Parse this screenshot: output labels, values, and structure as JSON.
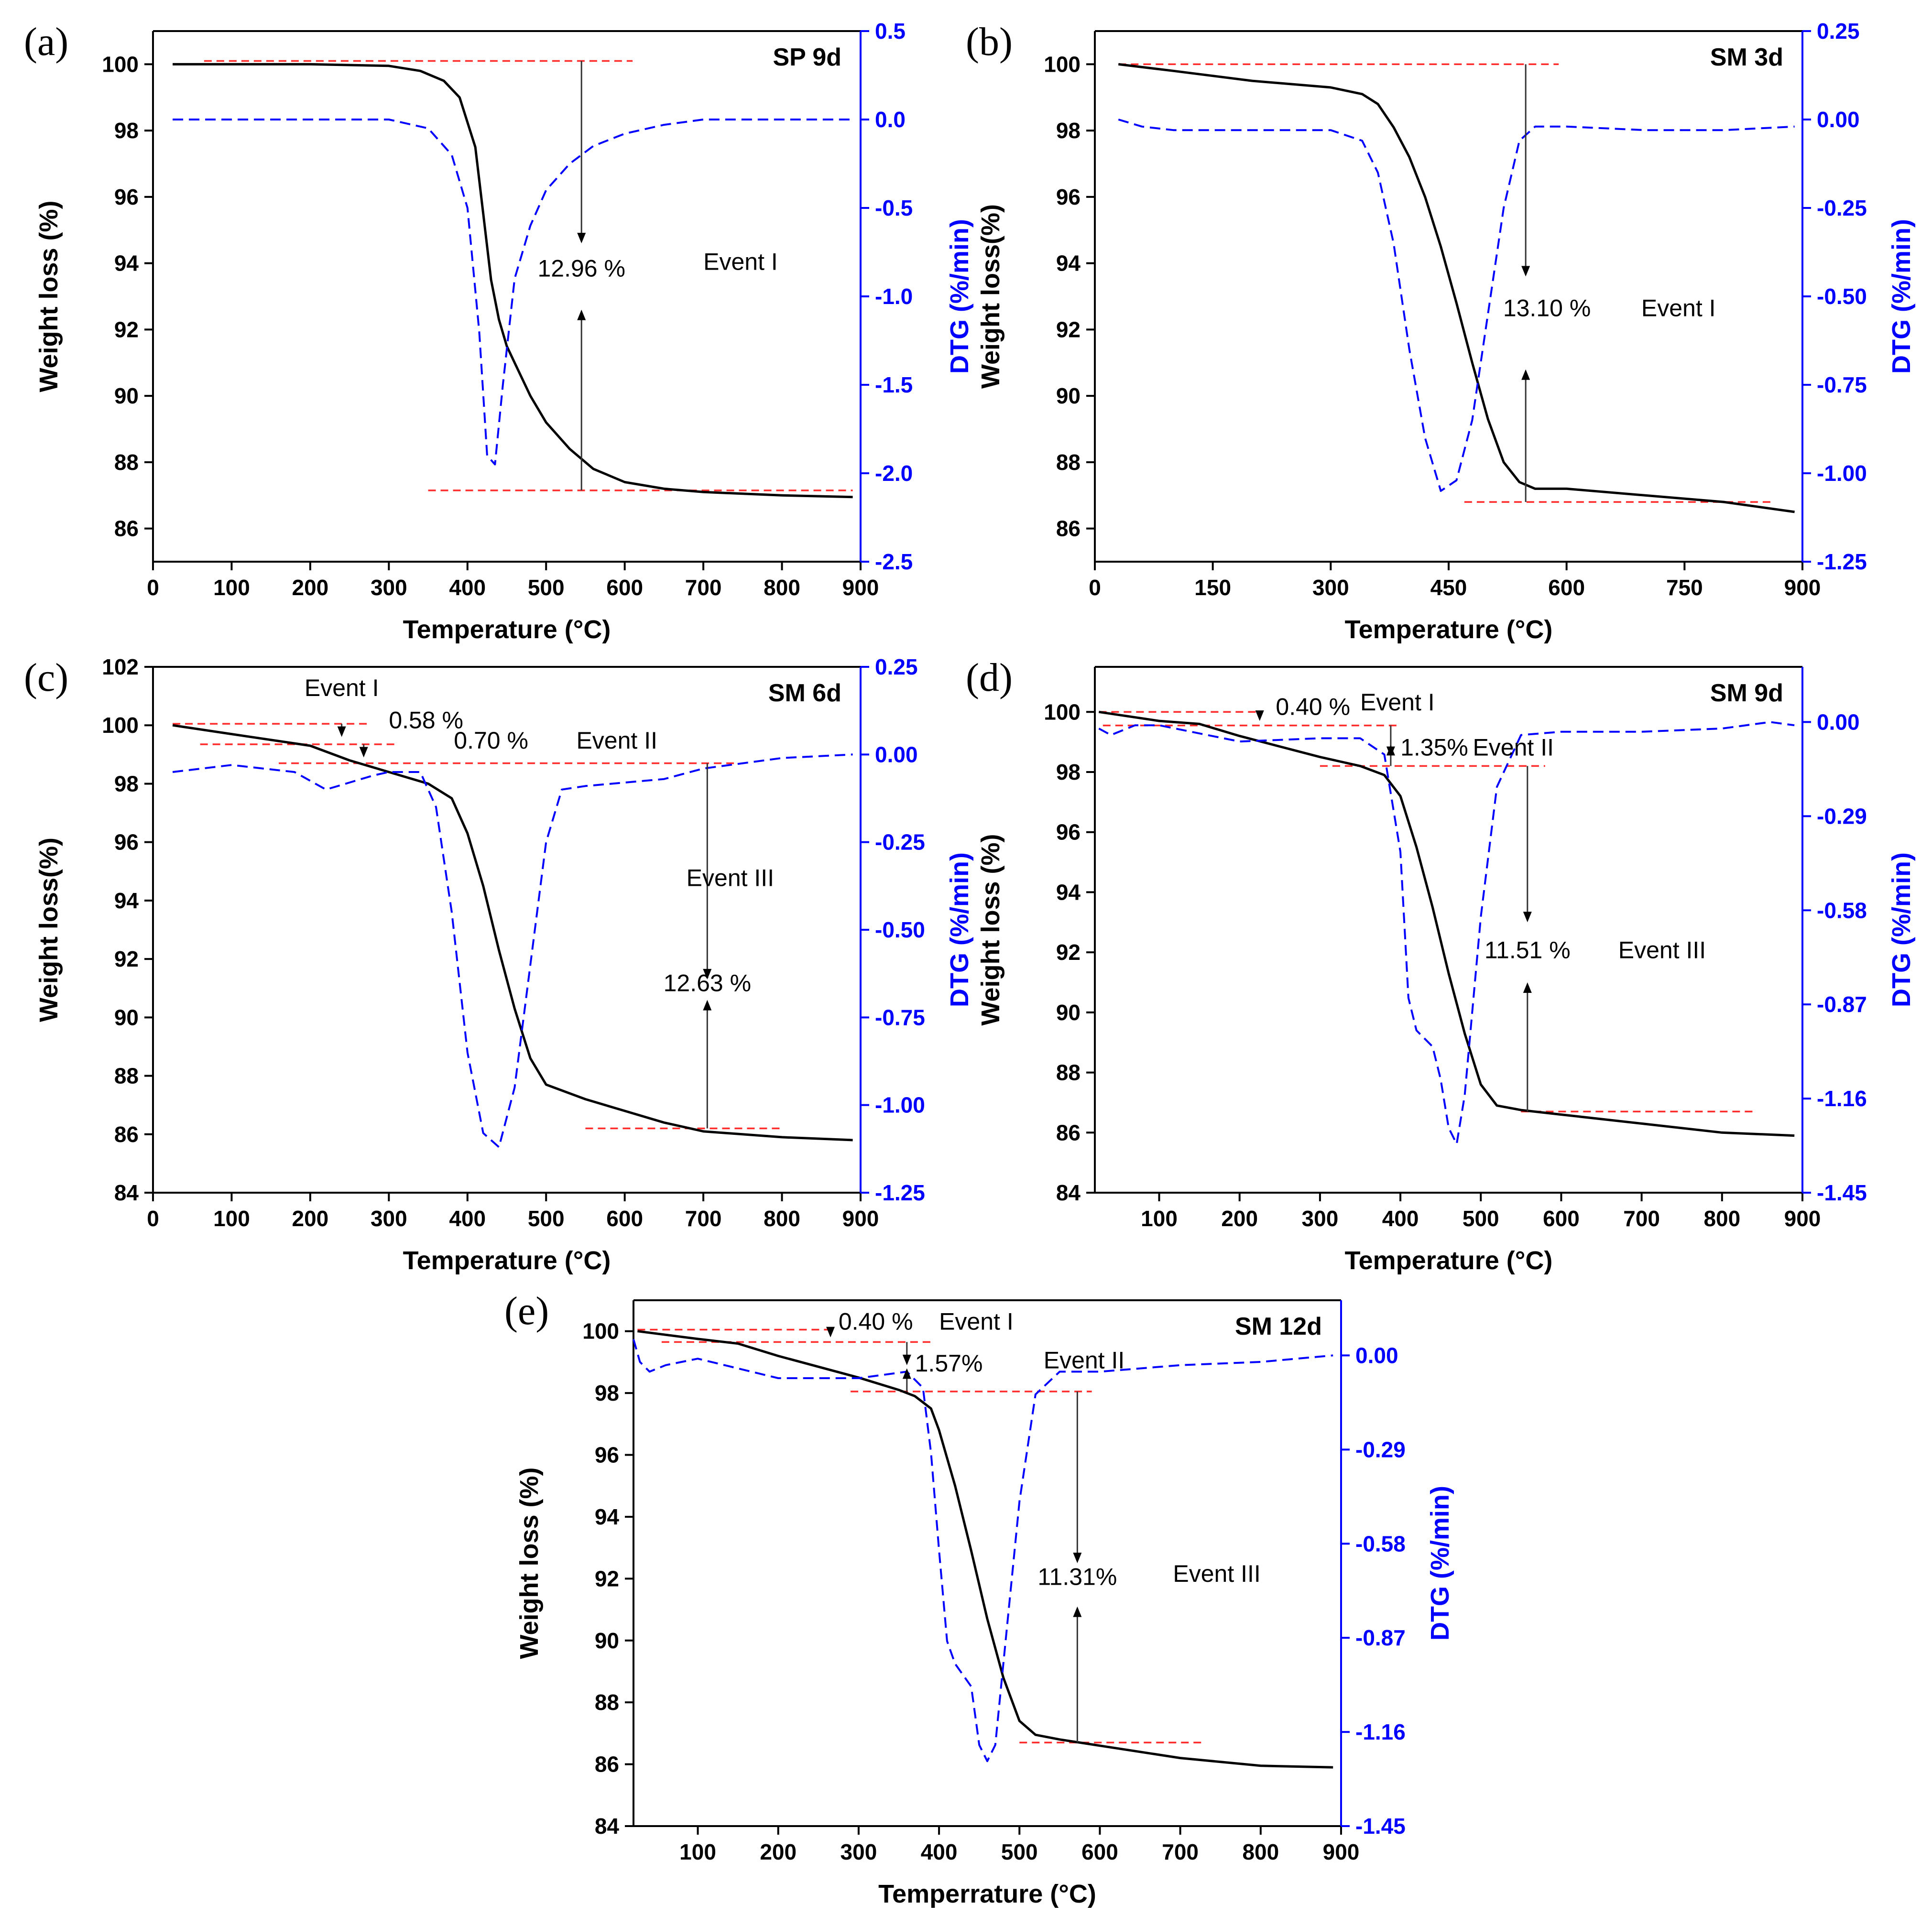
{
  "chart_data": [
    {
      "type": "line",
      "panel_label": "(a)",
      "sample": "SP 9d",
      "xlabel": "Temperature (°C)",
      "ylabel": "Weight loss (%)",
      "y2label": "DTG (%/min)",
      "xlim": [
        0,
        900
      ],
      "ylim": [
        85,
        101
      ],
      "y2lim": [
        -2.5,
        0.5
      ],
      "xticks": [
        "0",
        "100",
        "200",
        "300",
        "400",
        "500",
        "600",
        "700",
        "800",
        "900"
      ],
      "yticks": [
        "86",
        "88",
        "90",
        "92",
        "94",
        "96",
        "98",
        "100"
      ],
      "y2ticks": [
        "-2.5",
        "-2.0",
        "-1.5",
        "-1.0",
        "-0.5",
        "0.0",
        "0.5"
      ],
      "series": [
        {
          "axis": "left",
          "color": "#000000",
          "dash": false,
          "x": [
            25,
            100,
            200,
            300,
            340,
            370,
            390,
            410,
            420,
            430,
            440,
            450,
            460,
            480,
            500,
            530,
            560,
            600,
            650,
            700,
            800,
            890
          ],
          "y": [
            100,
            100,
            100,
            99.95,
            99.8,
            99.5,
            99.0,
            97.5,
            95.5,
            93.5,
            92.3,
            91.5,
            91.0,
            90.0,
            89.2,
            88.4,
            87.8,
            87.4,
            87.2,
            87.1,
            87.0,
            86.95
          ]
        },
        {
          "axis": "right",
          "color": "#0000ff",
          "dash": true,
          "x": [
            25,
            100,
            200,
            300,
            350,
            380,
            400,
            415,
            425,
            435,
            445,
            460,
            480,
            500,
            530,
            560,
            600,
            650,
            700,
            800,
            890
          ],
          "y": [
            0,
            0,
            0,
            0,
            -0.05,
            -0.2,
            -0.5,
            -1.2,
            -1.9,
            -1.95,
            -1.5,
            -0.9,
            -0.6,
            -0.4,
            -0.25,
            -0.15,
            -0.08,
            -0.03,
            0,
            0,
            0
          ]
        }
      ],
      "reflines": [
        {
          "x1": 65,
          "x2": 610,
          "y": 100.1
        },
        {
          "x1": 350,
          "x2": 890,
          "y": 87.15
        }
      ],
      "arrows": [
        {
          "x": 545,
          "y_from": 100.1,
          "y_to": 94.6
        },
        {
          "x": 545,
          "y_from": 87.15,
          "y_to": 92.6
        }
      ],
      "annotations": [
        {
          "text": "12.96 %",
          "x": 545,
          "y": 93.6,
          "anchor": "middle"
        },
        {
          "text": "Event I",
          "x": 700,
          "y": 93.8,
          "anchor": "start"
        }
      ]
    },
    {
      "type": "line",
      "panel_label": "(b)",
      "sample": "SM 3d",
      "xlabel": "Temperature (°C)",
      "ylabel": "Weight loss(%)",
      "y2label": "DTG (%/min)",
      "xlim": [
        0,
        900
      ],
      "ylim": [
        85,
        101
      ],
      "y2lim": [
        -1.25,
        0.25
      ],
      "xticks": [
        "0",
        "150",
        "300",
        "450",
        "600",
        "750",
        "900"
      ],
      "yticks": [
        "86",
        "88",
        "90",
        "92",
        "94",
        "96",
        "98",
        "100"
      ],
      "y2ticks": [
        "-1.25",
        "-1.00",
        "-0.75",
        "-0.50",
        "-0.25",
        "0.00",
        "0.25"
      ],
      "series": [
        {
          "axis": "left",
          "color": "#000000",
          "dash": false,
          "x": [
            30,
            100,
            200,
            300,
            340,
            360,
            380,
            400,
            420,
            440,
            460,
            480,
            500,
            520,
            540,
            560,
            600,
            700,
            800,
            890
          ],
          "y": [
            100,
            99.8,
            99.5,
            99.3,
            99.1,
            98.8,
            98.1,
            97.2,
            96.0,
            94.5,
            92.8,
            91.0,
            89.3,
            88.0,
            87.4,
            87.2,
            87.2,
            87.0,
            86.8,
            86.5
          ]
        },
        {
          "axis": "right",
          "color": "#0000ff",
          "dash": true,
          "x": [
            30,
            60,
            100,
            200,
            300,
            340,
            360,
            380,
            400,
            420,
            440,
            460,
            480,
            500,
            520,
            540,
            560,
            600,
            700,
            800,
            890
          ],
          "y": [
            0,
            -0.02,
            -0.03,
            -0.03,
            -0.03,
            -0.06,
            -0.15,
            -0.35,
            -0.65,
            -0.9,
            -1.05,
            -1.02,
            -0.85,
            -0.55,
            -0.25,
            -0.06,
            -0.02,
            -0.02,
            -0.03,
            -0.03,
            -0.02
          ]
        }
      ],
      "reflines": [
        {
          "x1": 30,
          "x2": 590,
          "y": 100
        },
        {
          "x1": 470,
          "x2": 860,
          "y": 86.8
        }
      ],
      "arrows": [
        {
          "x": 548,
          "y_from": 100,
          "y_to": 93.6
        },
        {
          "x": 548,
          "y_from": 86.8,
          "y_to": 90.8
        }
      ],
      "annotations": [
        {
          "text": "13.10 %",
          "x": 575,
          "y": 92.4,
          "anchor": "middle"
        },
        {
          "text": "Event I",
          "x": 695,
          "y": 92.4,
          "anchor": "start"
        }
      ]
    },
    {
      "type": "line",
      "panel_label": "(c)",
      "sample": "SM 6d",
      "xlabel": "Temperature (°C)",
      "ylabel": "Weight loss(%)",
      "y2label": "DTG (%/min)",
      "xlim": [
        0,
        900
      ],
      "ylim": [
        84,
        102
      ],
      "y2lim": [
        -1.25,
        0.25
      ],
      "xticks": [
        "0",
        "100",
        "200",
        "300",
        "400",
        "500",
        "600",
        "700",
        "800",
        "900"
      ],
      "yticks": [
        "84",
        "86",
        "88",
        "90",
        "92",
        "94",
        "96",
        "98",
        "100",
        "102"
      ],
      "y2ticks": [
        "-1.25",
        "-1.00",
        "-0.75",
        "-0.50",
        "-0.25",
        "0.00",
        "0.25"
      ],
      "series": [
        {
          "axis": "left",
          "color": "#000000",
          "dash": false,
          "x": [
            25,
            100,
            200,
            250,
            300,
            350,
            380,
            400,
            420,
            440,
            460,
            480,
            500,
            550,
            600,
            650,
            700,
            800,
            890
          ],
          "y": [
            100,
            99.7,
            99.3,
            98.8,
            98.4,
            98.0,
            97.5,
            96.3,
            94.5,
            92.3,
            90.3,
            88.6,
            87.7,
            87.2,
            86.8,
            86.4,
            86.1,
            85.9,
            85.8
          ]
        },
        {
          "axis": "right",
          "color": "#0000ff",
          "dash": true,
          "x": [
            25,
            100,
            180,
            220,
            250,
            280,
            300,
            340,
            360,
            380,
            400,
            420,
            440,
            460,
            480,
            500,
            520,
            550,
            600,
            650,
            700,
            800,
            890
          ],
          "y": [
            -0.05,
            -0.03,
            -0.05,
            -0.1,
            -0.08,
            -0.06,
            -0.05,
            -0.05,
            -0.15,
            -0.45,
            -0.85,
            -1.08,
            -1.12,
            -0.95,
            -0.6,
            -0.25,
            -0.1,
            -0.09,
            -0.08,
            -0.07,
            -0.04,
            -0.01,
            0
          ]
        }
      ],
      "reflines": [
        {
          "x1": 25,
          "x2": 275,
          "y": 100.05
        },
        {
          "x1": 60,
          "x2": 310,
          "y": 99.35
        },
        {
          "x1": 160,
          "x2": 740,
          "y": 98.7
        },
        {
          "x1": 550,
          "x2": 800,
          "y": 86.2
        }
      ],
      "arrows": [
        {
          "x": 240,
          "y_from": 100.05,
          "y_to": 99.6
        },
        {
          "x": 268,
          "y_from": 99.35,
          "y_to": 98.9
        },
        {
          "x": 705,
          "y_from": 98.7,
          "y_to": 91.3
        },
        {
          "x": 705,
          "y_from": 86.2,
          "y_to": 90.6
        }
      ],
      "annotations": [
        {
          "text": "Event I",
          "x": 240,
          "y": 101.0,
          "anchor": "middle"
        },
        {
          "text": "0.58 %",
          "x": 300,
          "y": 99.9,
          "anchor": "start"
        },
        {
          "text": "0.70 %",
          "x": 430,
          "y": 99.2,
          "anchor": "middle"
        },
        {
          "text": "Event II",
          "x": 590,
          "y": 99.2,
          "anchor": "middle"
        },
        {
          "text": "Event III",
          "x": 790,
          "y": 94.5,
          "anchor": "end"
        },
        {
          "text": "12.63 %",
          "x": 705,
          "y": 90.9,
          "anchor": "middle"
        }
      ]
    },
    {
      "type": "line",
      "panel_label": "(d)",
      "sample": "SM 9d",
      "xlabel": "Temperature (°C)",
      "ylabel": "Weight loss (%)",
      "y2label": "DTG (%/min)",
      "xlim": [
        20,
        900
      ],
      "ylim": [
        84,
        101.5
      ],
      "y2lim": [
        -1.45,
        0.17
      ],
      "xticks": [
        "100",
        "200",
        "300",
        "400",
        "500",
        "600",
        "700",
        "800",
        "900"
      ],
      "yticks": [
        "84",
        "86",
        "88",
        "90",
        "92",
        "94",
        "96",
        "98",
        "100"
      ],
      "y2ticks": [
        "-1.45",
        "-1.16",
        "-0.87",
        "-0.58",
        "-0.29",
        "0.00"
      ],
      "series": [
        {
          "axis": "left",
          "color": "#000000",
          "dash": false,
          "x": [
            25,
            100,
            150,
            200,
            300,
            350,
            380,
            400,
            420,
            440,
            460,
            480,
            500,
            520,
            550,
            600,
            700,
            800,
            890
          ],
          "y": [
            100,
            99.7,
            99.6,
            99.2,
            98.5,
            98.2,
            97.9,
            97.2,
            95.5,
            93.5,
            91.3,
            89.3,
            87.6,
            86.9,
            86.75,
            86.6,
            86.3,
            86.0,
            85.9
          ]
        },
        {
          "axis": "right",
          "color": "#0000ff",
          "dash": true,
          "x": [
            25,
            40,
            70,
            100,
            200,
            300,
            350,
            380,
            400,
            410,
            420,
            440,
            450,
            460,
            470,
            480,
            500,
            520,
            550,
            600,
            700,
            800,
            860,
            890
          ],
          "y": [
            -0.02,
            -0.04,
            -0.01,
            -0.01,
            -0.06,
            -0.05,
            -0.05,
            -0.1,
            -0.4,
            -0.85,
            -0.95,
            -1.0,
            -1.1,
            -1.25,
            -1.3,
            -1.15,
            -0.6,
            -0.2,
            -0.04,
            -0.03,
            -0.03,
            -0.02,
            0,
            -0.01
          ]
        }
      ],
      "reflines": [
        {
          "x1": 25,
          "x2": 225,
          "y": 100
        },
        {
          "x1": 30,
          "x2": 400,
          "y": 99.55
        },
        {
          "x1": 300,
          "x2": 580,
          "y": 98.2
        },
        {
          "x1": 550,
          "x2": 840,
          "y": 86.7
        }
      ],
      "arrows": [
        {
          "x": 225,
          "y_from": 100,
          "y_to": 99.7
        },
        {
          "x": 388,
          "y_from": 99.55,
          "y_to": 98.5
        },
        {
          "x": 388,
          "y_from": 98.2,
          "y_to": 98.9
        },
        {
          "x": 558,
          "y_from": 98.2,
          "y_to": 93.0
        },
        {
          "x": 558,
          "y_from": 86.7,
          "y_to": 91.0
        }
      ],
      "annotations": [
        {
          "text": "0.40 %",
          "x": 245,
          "y": 99.9,
          "anchor": "start"
        },
        {
          "text": "Event I",
          "x": 350,
          "y": 100.05,
          "anchor": "start"
        },
        {
          "text": "1.35%",
          "x": 400,
          "y": 98.55,
          "anchor": "start"
        },
        {
          "text": "Event II",
          "x": 490,
          "y": 98.55,
          "anchor": "start"
        },
        {
          "text": "11.51 %",
          "x": 558,
          "y": 91.8,
          "anchor": "middle"
        },
        {
          "text": "Event III",
          "x": 780,
          "y": 91.8,
          "anchor": "end"
        }
      ]
    },
    {
      "type": "line",
      "panel_label": "(e)",
      "sample": "SM 12d",
      "xlabel": "Temperrature (°C)",
      "ylabel": "Weight loss (%)",
      "y2label": "DTG (%/min)",
      "xlim": [
        20,
        900
      ],
      "ylim": [
        84,
        101
      ],
      "y2lim": [
        -1.45,
        0.17
      ],
      "xticks": [
        "100",
        "200",
        "300",
        "400",
        "500",
        "600",
        "700",
        "800",
        "900"
      ],
      "yticks": [
        "84",
        "86",
        "88",
        "90",
        "92",
        "94",
        "96",
        "98",
        "100"
      ],
      "y2ticks": [
        "-1.45",
        "-1.16",
        "-0.87",
        "-0.58",
        "-0.29",
        "0.00"
      ],
      "series": [
        {
          "axis": "left",
          "color": "#000000",
          "dash": false,
          "x": [
            25,
            100,
            150,
            200,
            300,
            350,
            370,
            390,
            400,
            420,
            440,
            460,
            480,
            500,
            520,
            550,
            600,
            700,
            800,
            890
          ],
          "y": [
            100,
            99.75,
            99.6,
            99.2,
            98.5,
            98.1,
            97.9,
            97.5,
            96.8,
            95.0,
            92.9,
            90.7,
            88.8,
            87.4,
            86.95,
            86.8,
            86.6,
            86.2,
            85.95,
            85.9
          ]
        },
        {
          "axis": "right",
          "color": "#0000ff",
          "dash": true,
          "x": [
            20,
            28,
            40,
            60,
            100,
            200,
            300,
            360,
            380,
            390,
            400,
            410,
            420,
            440,
            450,
            460,
            470,
            480,
            500,
            520,
            550,
            600,
            700,
            800,
            890
          ],
          "y": [
            0.05,
            -0.02,
            -0.05,
            -0.03,
            -0.01,
            -0.07,
            -0.07,
            -0.05,
            -0.1,
            -0.3,
            -0.6,
            -0.88,
            -0.95,
            -1.02,
            -1.2,
            -1.25,
            -1.2,
            -0.95,
            -0.45,
            -0.12,
            -0.05,
            -0.05,
            -0.03,
            -0.02,
            0
          ]
        }
      ],
      "reflines": [
        {
          "x1": 25,
          "x2": 270,
          "y": 100.05
        },
        {
          "x1": 55,
          "x2": 390,
          "y": 99.65
        },
        {
          "x1": 290,
          "x2": 590,
          "y": 98.05
        },
        {
          "x1": 500,
          "x2": 730,
          "y": 86.7
        }
      ],
      "arrows": [
        {
          "x": 265,
          "y_from": 100.05,
          "y_to": 99.8
        },
        {
          "x": 360,
          "y_from": 99.65,
          "y_to": 98.9
        },
        {
          "x": 360,
          "y_from": 98.05,
          "y_to": 98.8
        },
        {
          "x": 572,
          "y_from": 98.05,
          "y_to": 92.5
        },
        {
          "x": 572,
          "y_from": 86.7,
          "y_to": 91.1
        }
      ],
      "annotations": [
        {
          "text": "0.40 %",
          "x": 275,
          "y": 100.05,
          "anchor": "start"
        },
        {
          "text": "Event I",
          "x": 400,
          "y": 100.05,
          "anchor": "start"
        },
        {
          "text": "1.57%",
          "x": 370,
          "y": 98.7,
          "anchor": "start"
        },
        {
          "text": "Event II",
          "x": 530,
          "y": 98.8,
          "anchor": "start"
        },
        {
          "text": "11.31%",
          "x": 572,
          "y": 91.8,
          "anchor": "middle"
        },
        {
          "text": "Event III",
          "x": 800,
          "y": 91.9,
          "anchor": "end"
        }
      ]
    }
  ]
}
